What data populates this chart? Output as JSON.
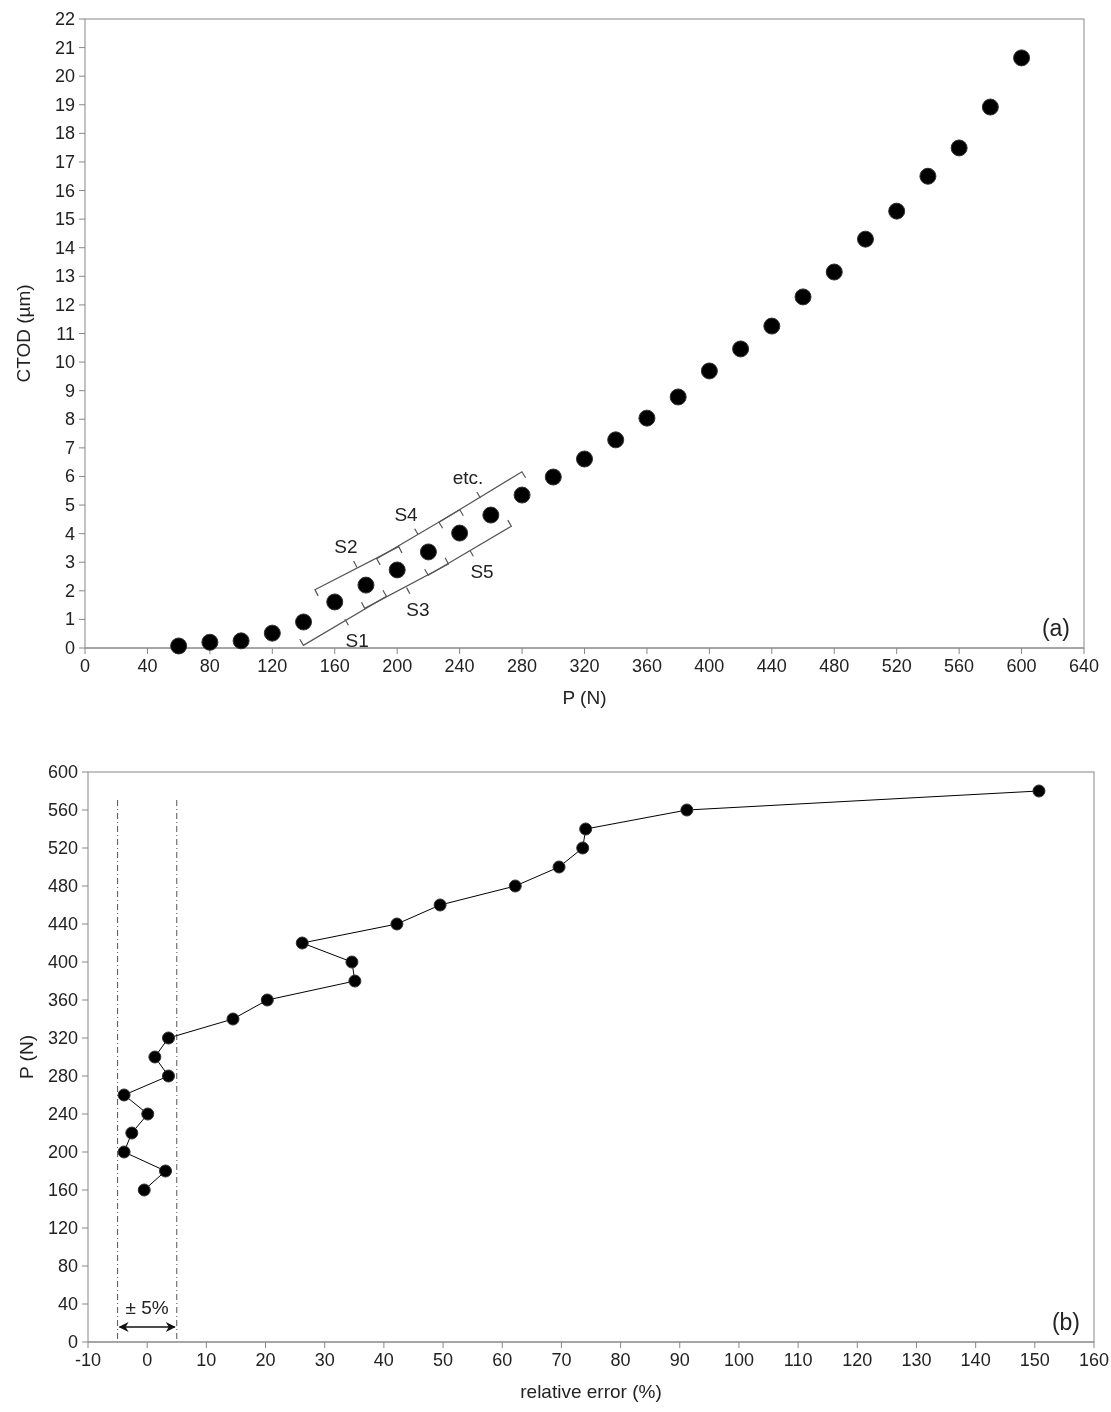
{
  "chart_data": [
    {
      "type": "scatter",
      "xlabel": "P (N)",
      "ylabel": "CTOD (µm)",
      "x": [
        60,
        80,
        100,
        120,
        140,
        160,
        180,
        200,
        220,
        240,
        260,
        280,
        300,
        320,
        340,
        360,
        380,
        400,
        420,
        440,
        460,
        480,
        500,
        520,
        540,
        560,
        580,
        600
      ],
      "series": [
        {
          "color": "#000000",
          "values": [
            0.07,
            0.2,
            0.25,
            0.52,
            0.91,
            1.61,
            2.2,
            2.73,
            3.36,
            4.02,
            4.65,
            5.35,
            5.98,
            6.61,
            7.28,
            8.04,
            8.78,
            9.69,
            10.46,
            11.26,
            12.28,
            13.15,
            14.3,
            15.28,
            16.5,
            17.49,
            18.92,
            20.64
          ]
        }
      ],
      "xlim": [
        0,
        640
      ],
      "xticks": [
        0,
        40,
        80,
        120,
        160,
        200,
        240,
        280,
        320,
        360,
        400,
        440,
        480,
        520,
        560,
        600,
        640
      ],
      "ylim": [
        0,
        22
      ],
      "yticks": [
        0,
        1,
        2,
        3,
        4,
        5,
        6,
        7,
        8,
        9,
        10,
        11,
        12,
        13,
        14,
        15,
        16,
        17,
        18,
        19,
        20,
        21,
        22
      ],
      "marker": "circle",
      "grid": false,
      "annotations": [
        {
          "text": "S1",
          "x": 160,
          "y": 1.61
        },
        {
          "text": "S2",
          "x": 180,
          "y": 2.2
        },
        {
          "text": "S3",
          "x": 200,
          "y": 2.73
        },
        {
          "text": "S4",
          "x": 220,
          "y": 3.36
        },
        {
          "text": "S5",
          "x": 240,
          "y": 4.02
        },
        {
          "text": "etc.",
          "x": 260,
          "y": 4.65
        },
        "(a)"
      ]
    },
    {
      "type": "line",
      "xlabel": "relative error (%)",
      "ylabel": "P (N)",
      "series": [
        {
          "color": "#000000",
          "x": [
            -0.5,
            3.1,
            -3.9,
            -2.6,
            0.1,
            -3.9,
            3.6,
            1.3,
            3.6,
            14.5,
            20.3,
            35.1,
            34.6,
            26.2,
            42.2,
            49.5,
            62.2,
            69.6,
            73.6,
            74.1,
            91.2,
            150.7
          ],
          "values": [
            160,
            180,
            200,
            220,
            240,
            260,
            280,
            300,
            320,
            340,
            360,
            380,
            400,
            420,
            440,
            460,
            480,
            500,
            520,
            540,
            560,
            580
          ]
        }
      ],
      "xlim": [
        -10,
        160
      ],
      "xticks": [
        -10,
        0,
        10,
        20,
        30,
        40,
        50,
        60,
        70,
        80,
        90,
        100,
        110,
        120,
        130,
        140,
        150,
        160
      ],
      "ylim": [
        0,
        600
      ],
      "yticks": [
        0,
        40,
        80,
        120,
        160,
        200,
        240,
        280,
        320,
        360,
        400,
        440,
        480,
        520,
        560,
        600
      ],
      "marker": "circle",
      "line_style": "solid",
      "grid": false,
      "ref_lines": [
        {
          "axis": "x",
          "value": -5,
          "color": "#555555",
          "line_style": "dashed"
        },
        {
          "axis": "x",
          "value": 5,
          "color": "#555555",
          "line_style": "dashed"
        }
      ],
      "annotations": [
        "± 5%",
        "(b)"
      ]
    }
  ]
}
